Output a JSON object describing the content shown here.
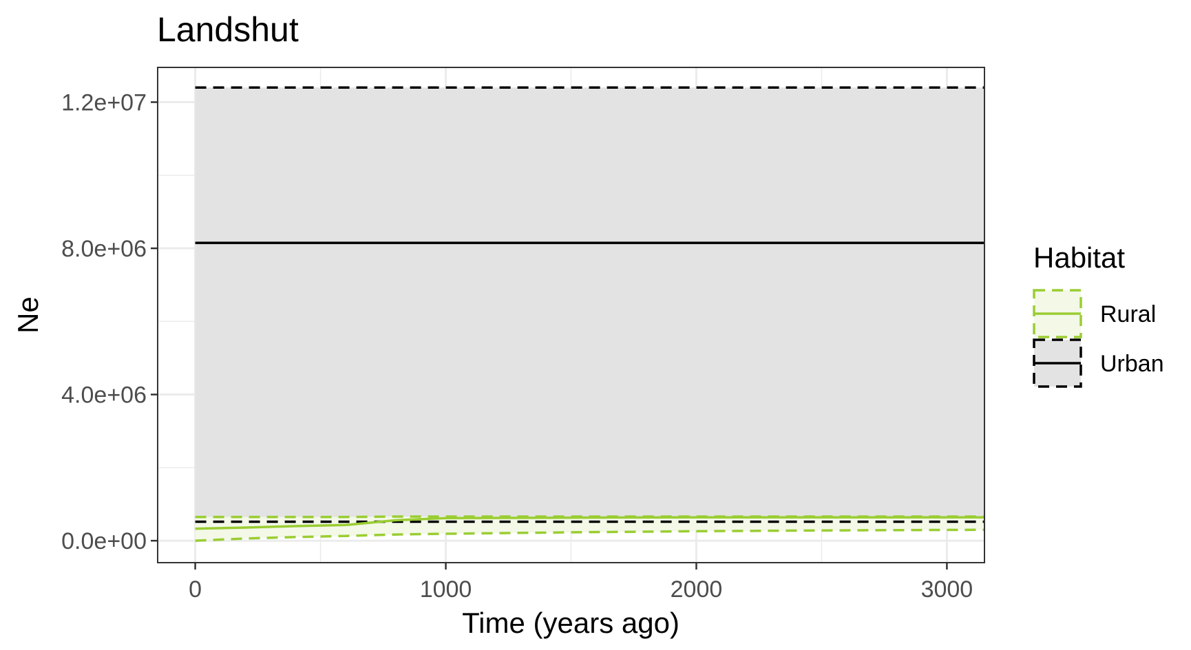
{
  "chart_data": {
    "type": "line",
    "title": "Landshut",
    "xlabel": "Time (years ago)",
    "ylabel": "Ne",
    "xlim": [
      -150,
      3150
    ],
    "ylim": [
      -600000,
      12950000
    ],
    "x_ticks": [
      0,
      1000,
      2000,
      3000
    ],
    "x_tick_labels": [
      "0",
      "1000",
      "2000",
      "3000"
    ],
    "y_ticks": [
      0,
      4000000,
      8000000,
      12000000
    ],
    "y_tick_labels": [
      "0.0e+00",
      "4.0e+06",
      "8.0e+06",
      "1.2e+07"
    ],
    "grid": true,
    "legend_title": "Habitat",
    "legend_position": "right",
    "series": [
      {
        "name": "Rural",
        "color": "#9acd32",
        "fill": "#f3f8e7",
        "x": [
          0,
          200,
          400,
          600,
          800,
          1000,
          1500,
          2000,
          2500,
          3150
        ],
        "median": [
          330000,
          360000,
          400000,
          430000,
          560000,
          620000,
          630000,
          640000,
          640000,
          640000
        ],
        "lower": [
          0,
          60000,
          100000,
          130000,
          170000,
          190000,
          230000,
          260000,
          280000,
          300000
        ],
        "upper": [
          650000,
          650000,
          650000,
          650000,
          660000,
          660000,
          660000,
          660000,
          660000,
          660000
        ]
      },
      {
        "name": "Urban",
        "color": "#000000",
        "fill": "#e3e3e3",
        "x": [
          0,
          3150
        ],
        "median": [
          8150000,
          8150000
        ],
        "lower": [
          520000,
          520000
        ],
        "upper": [
          12400000,
          12400000
        ]
      }
    ]
  }
}
